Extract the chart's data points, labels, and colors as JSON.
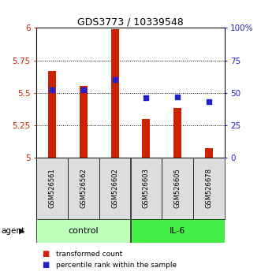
{
  "title": "GDS3773 / 10339548",
  "samples": [
    "GSM526561",
    "GSM526562",
    "GSM526602",
    "GSM526603",
    "GSM526605",
    "GSM526678"
  ],
  "groups": [
    "control",
    "control",
    "control",
    "IL-6",
    "IL-6",
    "IL-6"
  ],
  "transformed_counts": [
    5.67,
    5.55,
    5.99,
    5.3,
    5.38,
    5.07
  ],
  "percentile_ranks": [
    52,
    52,
    60,
    46,
    47,
    43
  ],
  "bar_color": "#cc2200",
  "dot_color": "#2222cc",
  "ymin": 5.0,
  "ymax": 6.0,
  "yticks": [
    5.0,
    5.25,
    5.5,
    5.75,
    6.0
  ],
  "ytick_labels": [
    "5",
    "5.25",
    "5.5",
    "5.75",
    "6"
  ],
  "y2min": 0,
  "y2max": 100,
  "y2ticks": [
    0,
    25,
    50,
    75,
    100
  ],
  "y2tick_labels": [
    "0",
    "25",
    "50",
    "75",
    "100%"
  ],
  "group_colors": {
    "control": "#bbffbb",
    "IL-6": "#44ee44"
  },
  "group_label": "agent",
  "bar_width": 0.25,
  "legend_tc": "transformed count",
  "legend_pr": "percentile rank within the sample",
  "left_color": "#cc2200",
  "right_color": "#2222cc",
  "bg_color": "#dddddd"
}
